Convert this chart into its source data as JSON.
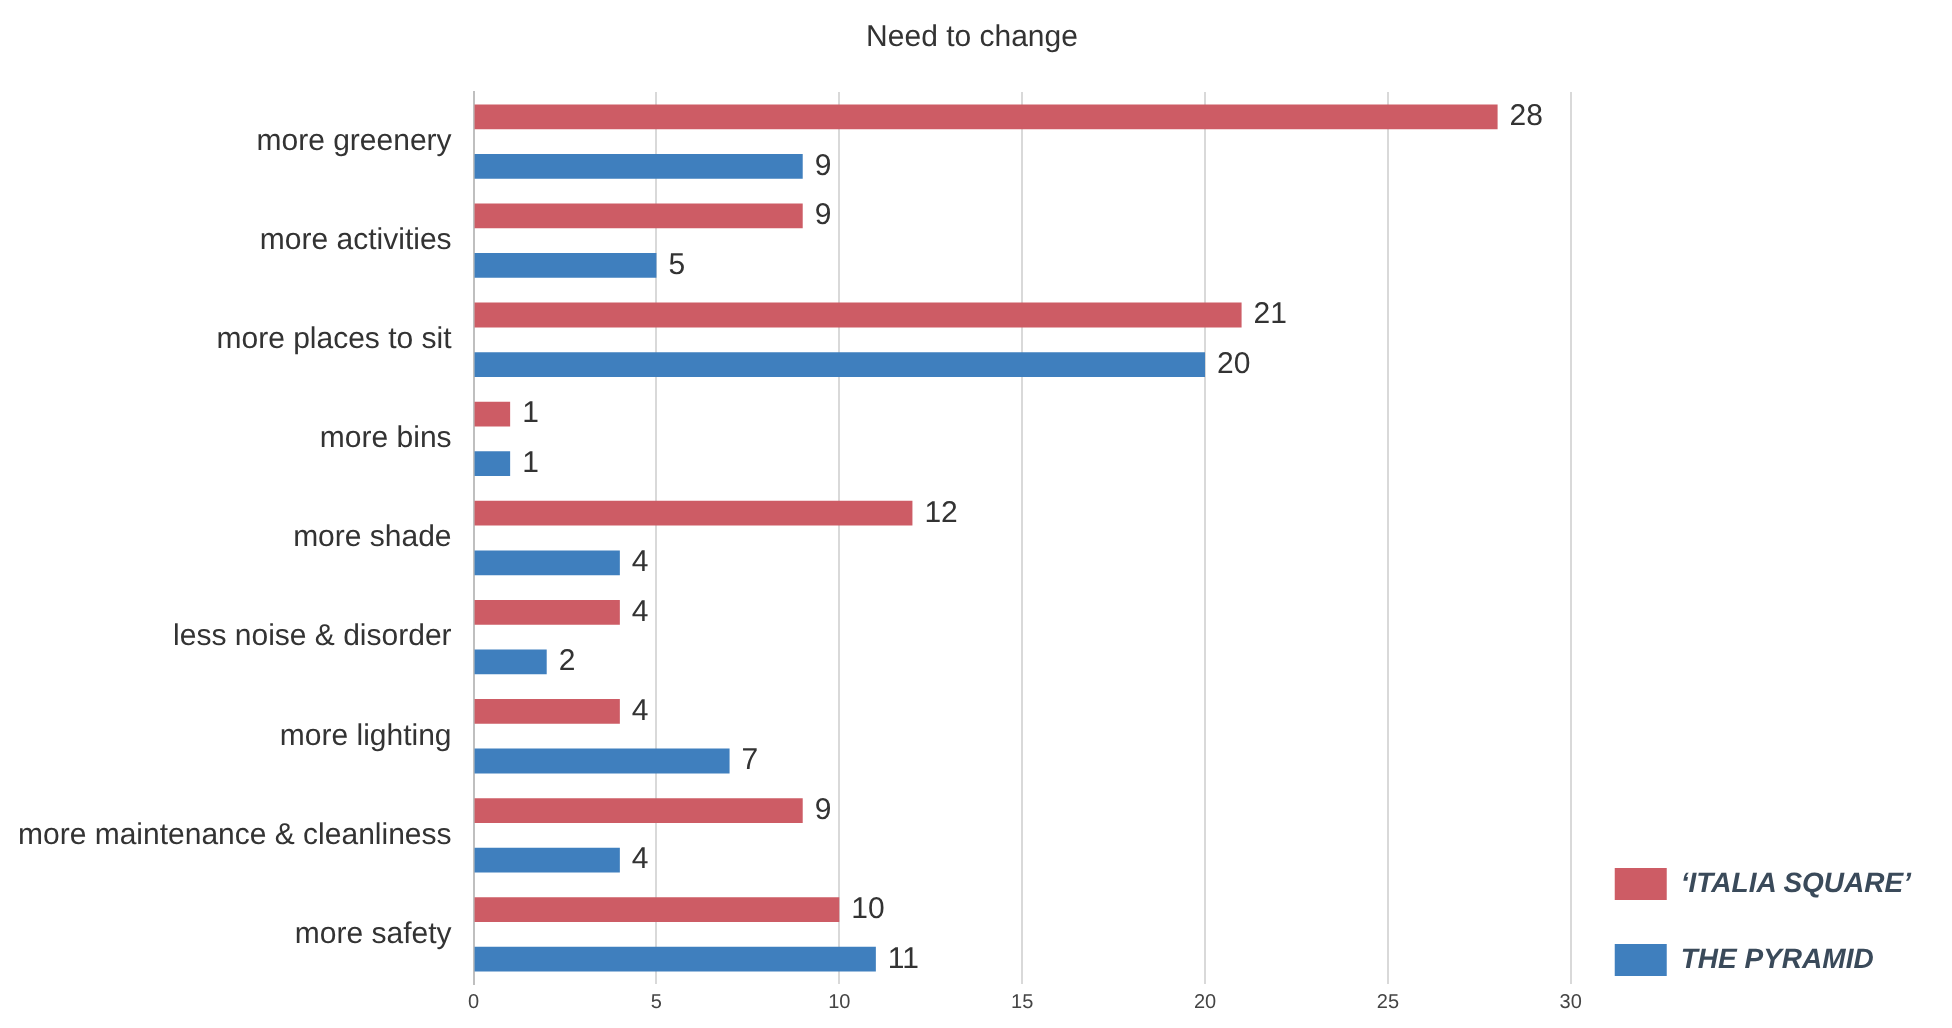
{
  "chart_data": {
    "type": "bar",
    "orientation": "horizontal",
    "title": "Need to change",
    "categories": [
      "more greenery",
      "more activities",
      "more places to sit",
      "more bins",
      "more shade",
      "less noise & disorder",
      "more lighting",
      "more maintenance & cleanliness",
      "more safety"
    ],
    "series": [
      {
        "name": "‘ITALIA SQUARE’",
        "color": "#cd5c65",
        "values": [
          28,
          9,
          21,
          1,
          12,
          4,
          4,
          9,
          10
        ]
      },
      {
        "name": "THE PYRAMID",
        "color": "#3f7fbe",
        "values": [
          9,
          5,
          20,
          1,
          4,
          2,
          7,
          4,
          11
        ]
      }
    ],
    "xlim": [
      0,
      30
    ],
    "xticks": [
      0,
      5,
      10,
      15,
      20,
      25,
      30
    ],
    "grid": "x",
    "legend": "bottom right",
    "data_labels": true
  }
}
